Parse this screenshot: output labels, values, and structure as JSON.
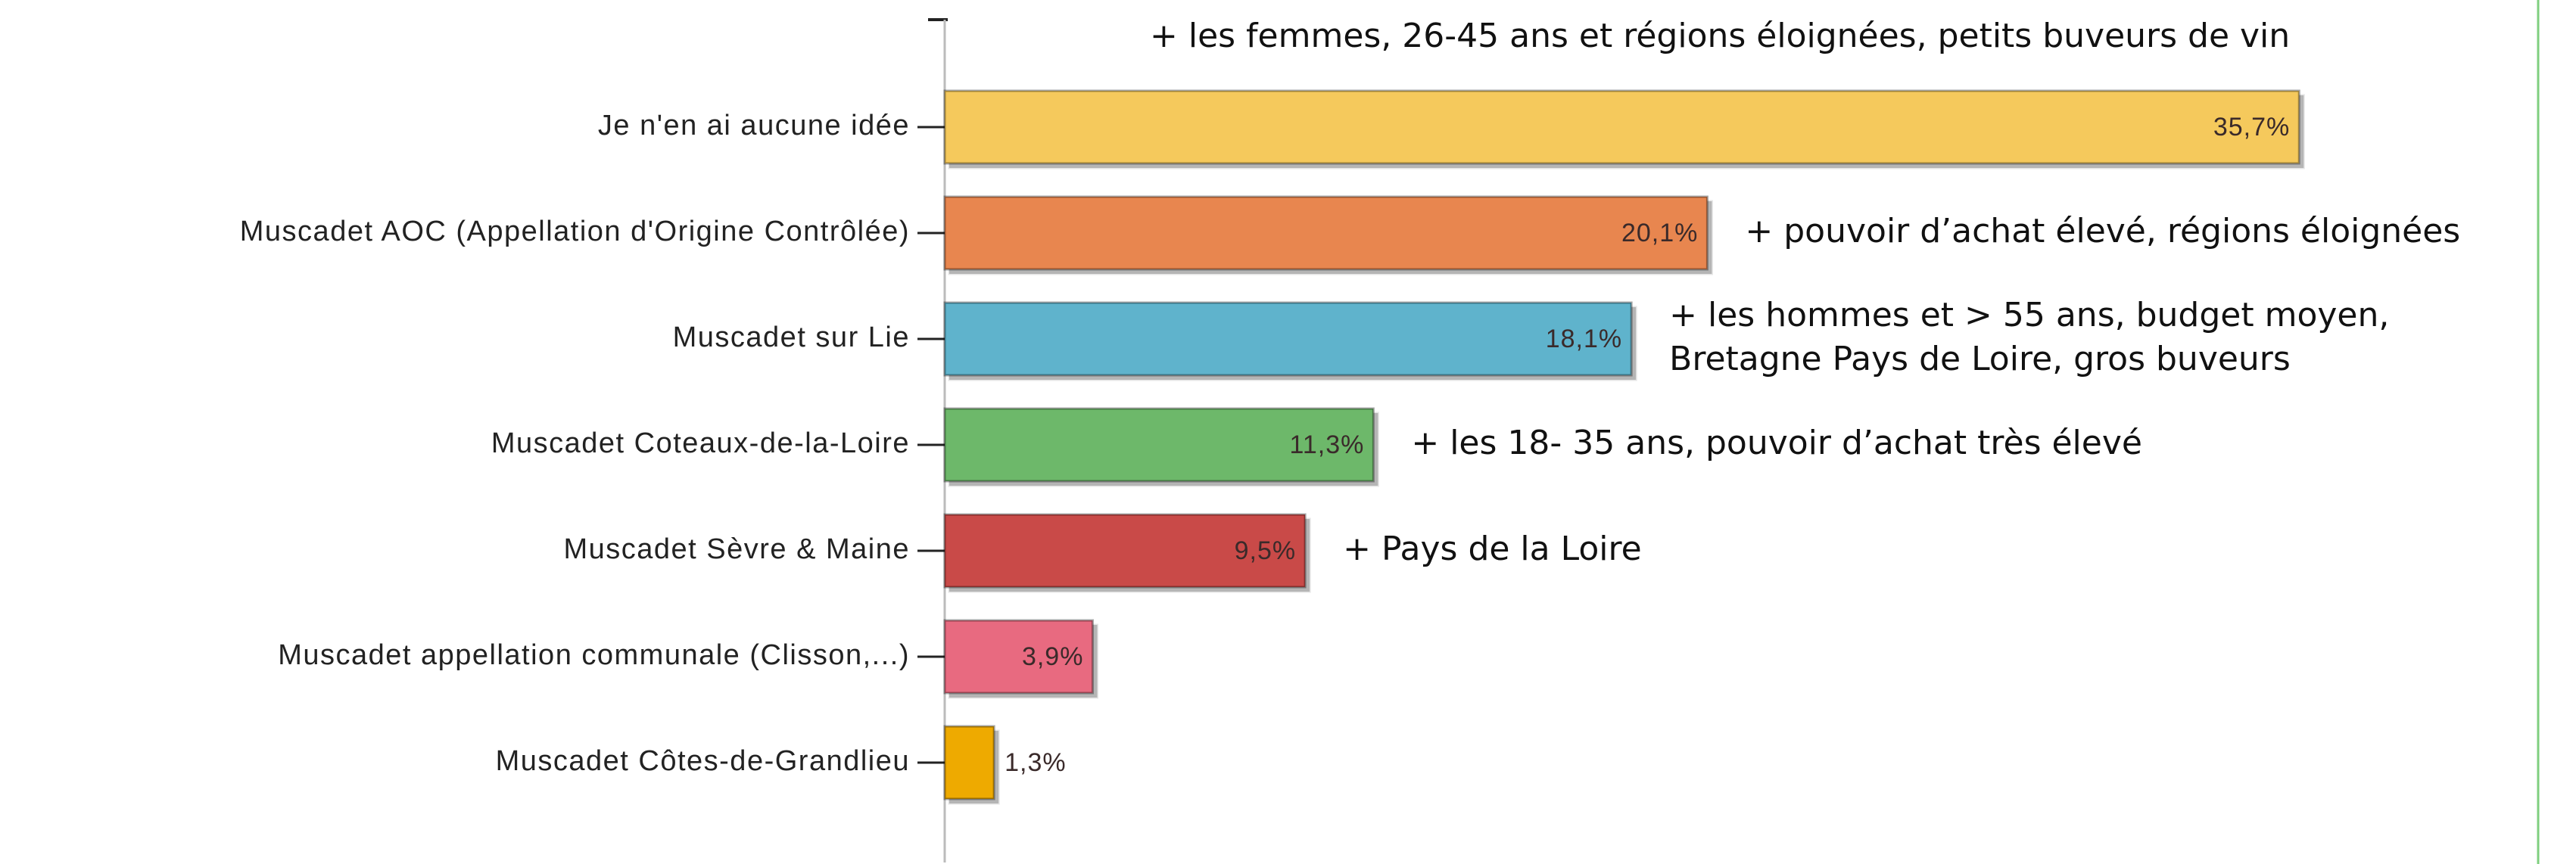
{
  "chart_data": {
    "type": "barh",
    "categories": [
      "Je n'en ai aucune idée",
      "Muscadet AOC (Appellation d'Origine Contrôlée)",
      "Muscadet sur Lie",
      "Muscadet Coteaux-de-la-Loire",
      "Muscadet Sèvre & Maine",
      "Muscadet appellation communale (Clisson,...)",
      "Muscadet Côtes-de-Grandlieu"
    ],
    "values": [
      35.7,
      20.1,
      18.1,
      11.3,
      9.5,
      3.9,
      1.3
    ],
    "value_labels": [
      "35,7%",
      "20,1%",
      "18,1%",
      "11,3%",
      "9,5%",
      "3,9%",
      "1,3%"
    ],
    "colors": [
      "#f5c95c",
      "#e8864f",
      "#5fb3cc",
      "#6db86a",
      "#c94a48",
      "#e86a80",
      "#eeaa00"
    ],
    "xlim": [
      0,
      42
    ],
    "annotations": [
      [
        "+ les femmes, 26-45 ans et régions éloignées, petits buveurs de vin"
      ],
      [
        "+ pouvoir d’achat élevé, régions éloignées"
      ],
      [
        "+ les hommes et > 55 ans, budget moyen,",
        "Bretagne Pays de Loire, gros buveurs"
      ],
      [
        "+ les 18- 35 ans, pouvoir d’achat très élevé"
      ],
      [
        "+ Pays de la Loire"
      ]
    ]
  }
}
